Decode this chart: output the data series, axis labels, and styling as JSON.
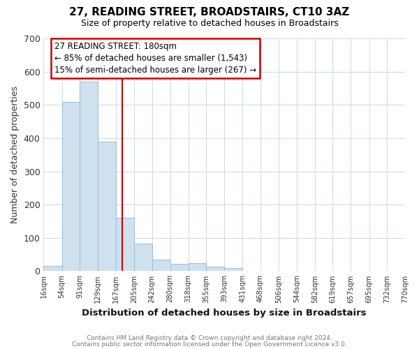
{
  "title": "27, READING STREET, BROADSTAIRS, CT10 3AZ",
  "subtitle": "Size of property relative to detached houses in Broadstairs",
  "xlabel": "Distribution of detached houses by size in Broadstairs",
  "ylabel": "Number of detached properties",
  "bar_left_edges": [
    16,
    54,
    91,
    129,
    167,
    205,
    242,
    280,
    318,
    355,
    393,
    431,
    468,
    506,
    544,
    582,
    619,
    657,
    695,
    732
  ],
  "bar_widths": [
    38,
    37,
    38,
    38,
    38,
    37,
    38,
    38,
    37,
    38,
    38,
    37,
    38,
    38,
    38,
    37,
    38,
    38,
    37,
    38
  ],
  "bar_heights": [
    16,
    510,
    570,
    390,
    160,
    83,
    35,
    22,
    25,
    13,
    10,
    0,
    0,
    0,
    0,
    0,
    0,
    0,
    0,
    0
  ],
  "bar_color": "#cfe0ef",
  "bar_edgecolor": "#9bbdd4",
  "x_tick_labels": [
    "16sqm",
    "54sqm",
    "91sqm",
    "129sqm",
    "167sqm",
    "205sqm",
    "242sqm",
    "280sqm",
    "318sqm",
    "355sqm",
    "393sqm",
    "431sqm",
    "468sqm",
    "506sqm",
    "544sqm",
    "582sqm",
    "619sqm",
    "657sqm",
    "695sqm",
    "732sqm",
    "770sqm"
  ],
  "x_tick_positions": [
    16,
    54,
    91,
    129,
    167,
    205,
    242,
    280,
    318,
    355,
    393,
    431,
    468,
    506,
    544,
    582,
    619,
    657,
    695,
    732,
    770
  ],
  "ylim": [
    0,
    700
  ],
  "xlim": [
    16,
    770
  ],
  "yticks": [
    0,
    100,
    200,
    300,
    400,
    500,
    600,
    700
  ],
  "red_line_x": 180,
  "annotation_title": "27 READING STREET: 180sqm",
  "annotation_line1": "← 85% of detached houses are smaller (1,543)",
  "annotation_line2": "15% of semi-detached houses are larger (267) →",
  "footer_line1": "Contains HM Land Registry data © Crown copyright and database right 2024.",
  "footer_line2": "Contains public sector information licensed under the Open Government Licence v3.0.",
  "background_color": "#ffffff",
  "grid_color": "#d0dce8"
}
